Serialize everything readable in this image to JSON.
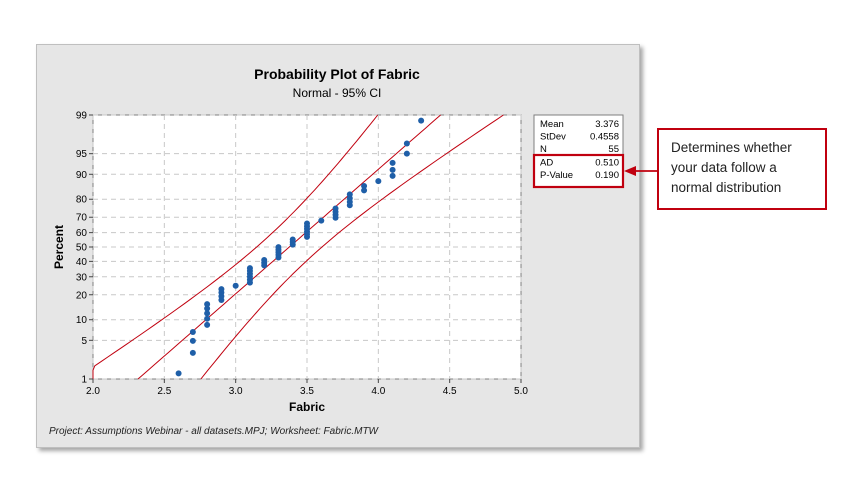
{
  "chart_data": {
    "type": "scatter",
    "title": "Probability Plot of Fabric",
    "subtitle": "Normal - 95% CI",
    "xlabel": "Fabric",
    "ylabel": "Percent",
    "xlim": [
      2.0,
      5.0
    ],
    "xticks": [
      "2.0",
      "2.5",
      "3.0",
      "3.5",
      "4.0",
      "4.5",
      "5.0"
    ],
    "y_scale": "normal-probability",
    "yticks": [
      "1",
      "5",
      "10",
      "20",
      "30",
      "40",
      "50",
      "60",
      "70",
      "80",
      "90",
      "95",
      "99"
    ],
    "grid": true,
    "fit_line": {
      "mean": 3.376,
      "stdev": 0.4558
    },
    "ci_band": "95%",
    "points": [
      {
        "x": 2.6,
        "y": 1.3
      },
      {
        "x": 2.7,
        "y": 3.1
      },
      {
        "x": 2.7,
        "y": 4.9
      },
      {
        "x": 2.7,
        "y": 6.7
      },
      {
        "x": 2.8,
        "y": 8.5
      },
      {
        "x": 2.8,
        "y": 10.3
      },
      {
        "x": 2.8,
        "y": 12.1
      },
      {
        "x": 2.8,
        "y": 13.9
      },
      {
        "x": 2.8,
        "y": 15.7
      },
      {
        "x": 2.9,
        "y": 17.5
      },
      {
        "x": 2.9,
        "y": 19.3
      },
      {
        "x": 2.9,
        "y": 21.1
      },
      {
        "x": 2.9,
        "y": 22.9
      },
      {
        "x": 3.0,
        "y": 24.7
      },
      {
        "x": 3.1,
        "y": 26.5
      },
      {
        "x": 3.1,
        "y": 28.3
      },
      {
        "x": 3.1,
        "y": 30.1
      },
      {
        "x": 3.1,
        "y": 31.9
      },
      {
        "x": 3.1,
        "y": 33.7
      },
      {
        "x": 3.1,
        "y": 35.5
      },
      {
        "x": 3.2,
        "y": 37.3
      },
      {
        "x": 3.2,
        "y": 39.1
      },
      {
        "x": 3.2,
        "y": 40.9
      },
      {
        "x": 3.3,
        "y": 42.7
      },
      {
        "x": 3.3,
        "y": 44.5
      },
      {
        "x": 3.3,
        "y": 46.3
      },
      {
        "x": 3.3,
        "y": 48.1
      },
      {
        "x": 3.3,
        "y": 49.9
      },
      {
        "x": 3.4,
        "y": 51.7
      },
      {
        "x": 3.4,
        "y": 53.5
      },
      {
        "x": 3.4,
        "y": 55.3
      },
      {
        "x": 3.5,
        "y": 57.1
      },
      {
        "x": 3.5,
        "y": 58.9
      },
      {
        "x": 3.5,
        "y": 60.7
      },
      {
        "x": 3.5,
        "y": 62.5
      },
      {
        "x": 3.5,
        "y": 64.3
      },
      {
        "x": 3.5,
        "y": 66.1
      },
      {
        "x": 3.6,
        "y": 67.9
      },
      {
        "x": 3.7,
        "y": 69.7
      },
      {
        "x": 3.7,
        "y": 71.5
      },
      {
        "x": 3.7,
        "y": 73.3
      },
      {
        "x": 3.7,
        "y": 75.1
      },
      {
        "x": 3.8,
        "y": 76.9
      },
      {
        "x": 3.8,
        "y": 78.7
      },
      {
        "x": 3.8,
        "y": 80.5
      },
      {
        "x": 3.8,
        "y": 82.3
      },
      {
        "x": 3.9,
        "y": 84.1
      },
      {
        "x": 3.9,
        "y": 85.9
      },
      {
        "x": 4.0,
        "y": 87.7
      },
      {
        "x": 4.1,
        "y": 89.5
      },
      {
        "x": 4.1,
        "y": 91.3
      },
      {
        "x": 4.1,
        "y": 93.1
      },
      {
        "x": 4.2,
        "y": 95.0
      },
      {
        "x": 4.2,
        "y": 96.6
      },
      {
        "x": 4.3,
        "y": 98.7
      }
    ]
  },
  "stats": [
    {
      "label": "Mean",
      "value": "3.376"
    },
    {
      "label": "StDev",
      "value": "0.4558"
    },
    {
      "label": "N",
      "value": "55"
    },
    {
      "label": "AD",
      "value": "0.510"
    },
    {
      "label": "P-Value",
      "value": "0.190"
    }
  ],
  "footnote": "Project: Assumptions Webinar - all datasets.MPJ; Worksheet: Fabric.MTW",
  "callout": {
    "text": "Determines whether your data follow a normal distribution"
  },
  "colors": {
    "points": "#1f5fa8",
    "lines": "#c0000f",
    "highlight": "#c0000f",
    "grid": "#c8c8c8"
  }
}
